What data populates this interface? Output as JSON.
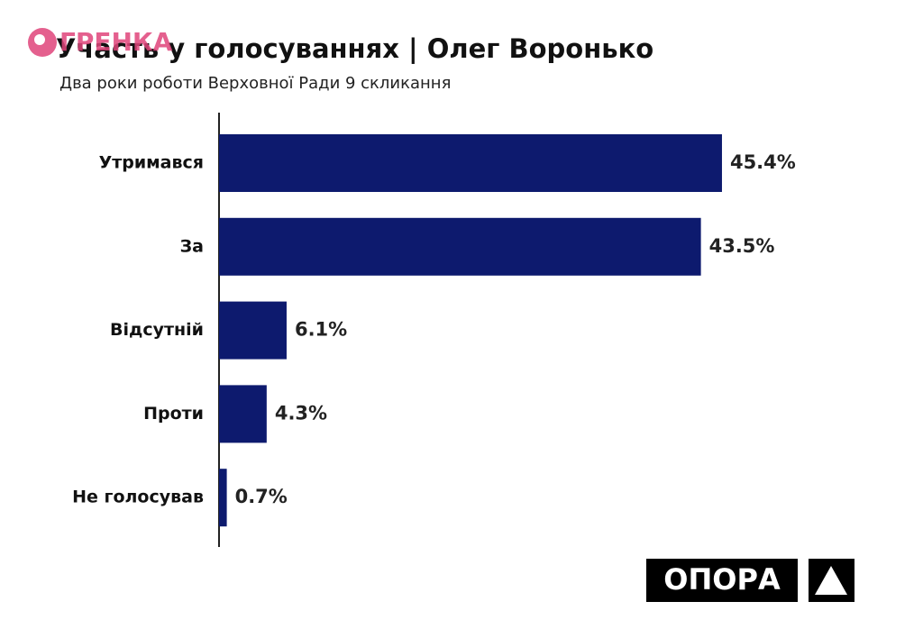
{
  "chart_data": {
    "type": "hbar",
    "title": "Участь у голосуваннях | Олег Воронько",
    "subtitle": "Два роки роботи Верховної Ради 9 скликання",
    "categories": [
      "Утримався",
      "За",
      "Відсутній",
      "Проти",
      "Не голосував"
    ],
    "values": [
      45.4,
      43.5,
      6.1,
      4.3,
      0.7
    ],
    "value_labels": [
      "45.4%",
      "43.5%",
      "6.1%",
      "4.3%",
      "0.7%"
    ],
    "color": "#0d1a6e",
    "watermark": "ГРЕНКА",
    "logo": "ОПОРА"
  }
}
